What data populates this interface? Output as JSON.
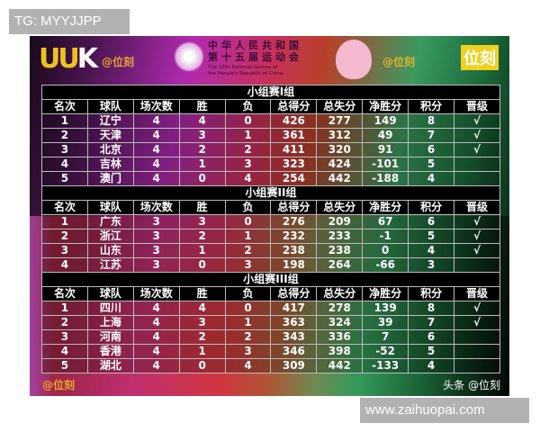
{
  "banner": {
    "logo_left": "UUK",
    "games_cn_1": "中华人民共和国",
    "games_cn_2": "第十五届运动会",
    "games_en_1": "The 15th National Games of",
    "games_en_2": "the People's Republic of China",
    "logo_right": "位刻"
  },
  "columns": [
    "名次",
    "球队",
    "场次数",
    "胜",
    "负",
    "总得分",
    "总失分",
    "净胜分",
    "积分",
    "晋级"
  ],
  "groups": [
    {
      "title": "小组赛I组",
      "rows": [
        [
          "1",
          "辽宁",
          "4",
          "4",
          "0",
          "426",
          "277",
          "149",
          "8",
          "√"
        ],
        [
          "2",
          "天津",
          "4",
          "3",
          "1",
          "361",
          "312",
          "49",
          "7",
          "√"
        ],
        [
          "3",
          "北京",
          "4",
          "2",
          "2",
          "411",
          "320",
          "91",
          "6",
          "√"
        ],
        [
          "4",
          "吉林",
          "4",
          "1",
          "3",
          "323",
          "424",
          "-101",
          "5",
          ""
        ],
        [
          "5",
          "澳门",
          "4",
          "0",
          "4",
          "254",
          "442",
          "-188",
          "4",
          ""
        ]
      ]
    },
    {
      "title": "小组赛II组",
      "rows": [
        [
          "1",
          "广东",
          "3",
          "3",
          "0",
          "276",
          "209",
          "67",
          "6",
          "√"
        ],
        [
          "2",
          "浙江",
          "3",
          "2",
          "1",
          "232",
          "233",
          "-1",
          "5",
          "√"
        ],
        [
          "3",
          "山东",
          "3",
          "1",
          "2",
          "238",
          "238",
          "0",
          "4",
          "√"
        ],
        [
          "4",
          "江苏",
          "3",
          "0",
          "3",
          "198",
          "264",
          "-66",
          "3",
          ""
        ]
      ]
    },
    {
      "title": "小组赛III组",
      "rows": [
        [
          "1",
          "四川",
          "4",
          "4",
          "0",
          "417",
          "278",
          "139",
          "8",
          "√"
        ],
        [
          "2",
          "上海",
          "4",
          "3",
          "1",
          "363",
          "324",
          "39",
          "7",
          "√"
        ],
        [
          "3",
          "河南",
          "4",
          "2",
          "2",
          "343",
          "336",
          "7",
          "6",
          ""
        ],
        [
          "4",
          "香港",
          "4",
          "1",
          "3",
          "346",
          "398",
          "-52",
          "5",
          ""
        ],
        [
          "5",
          "湖北",
          "4",
          "0",
          "4",
          "309",
          "442",
          "-133",
          "4",
          ""
        ]
      ]
    }
  ],
  "watermark": "@位刻",
  "credit": "头条 @位刻",
  "overlay_top": "TG: MYYJJPP",
  "overlay_bottom": "www.zaihuopai.com"
}
